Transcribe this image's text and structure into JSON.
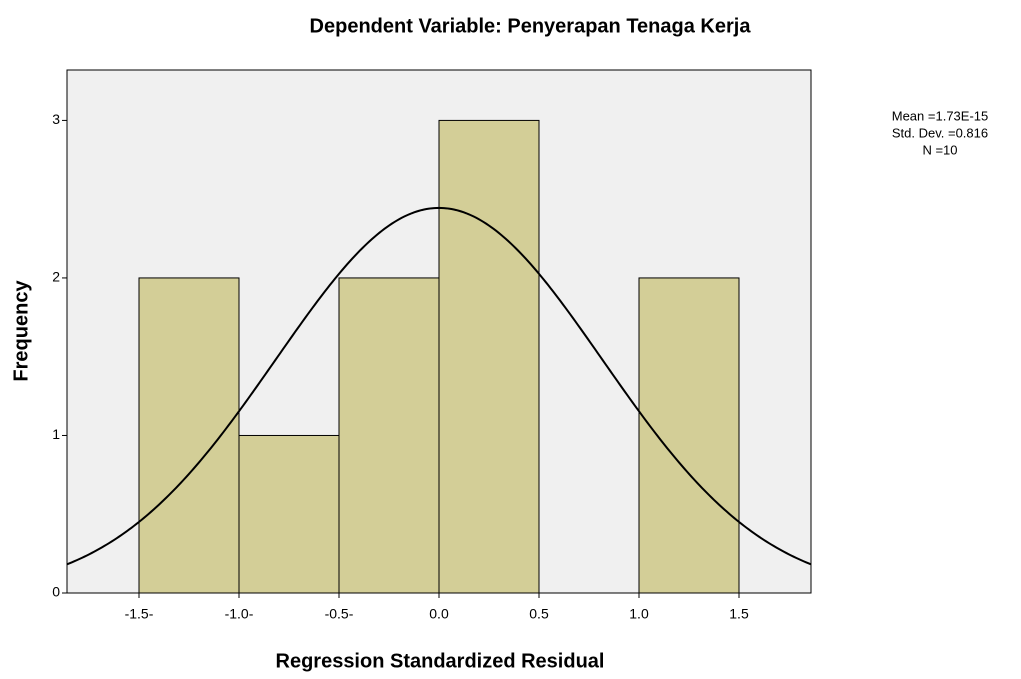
{
  "chart_data": {
    "type": "histogram",
    "title": "Dependent Variable: Penyerapan Tenaga Kerja",
    "x_label": "Regression Standardized Residual",
    "y_label": "Frequency",
    "bins": [
      -1.5,
      -1.0,
      -0.5,
      0,
      0.5,
      1.0,
      1.5
    ],
    "values": [
      2,
      1,
      2,
      3,
      0,
      2
    ],
    "color": "#d3ce97",
    "xlim": [
      -1.86,
      1.86
    ],
    "ylim": [
      0,
      3.32
    ],
    "xticks": [
      {
        "value": -1.5,
        "label": "-1.5-"
      },
      {
        "value": -1.0,
        "label": "-1.0-"
      },
      {
        "value": -0.5,
        "label": "-0.5-"
      },
      {
        "value": 0,
        "label": "0.0"
      },
      0.5,
      {
        "value": 1.0,
        "label": "1.0"
      },
      1.5
    ],
    "yticks": [
      0,
      1,
      2,
      3
    ],
    "normal_curve": {
      "mean": 1.73e-15,
      "std_dev": 0.816,
      "n": 10,
      "labels": [
        "Mean =1.73E-15",
        "Std. Dev. =0.816",
        "N =10"
      ]
    }
  }
}
